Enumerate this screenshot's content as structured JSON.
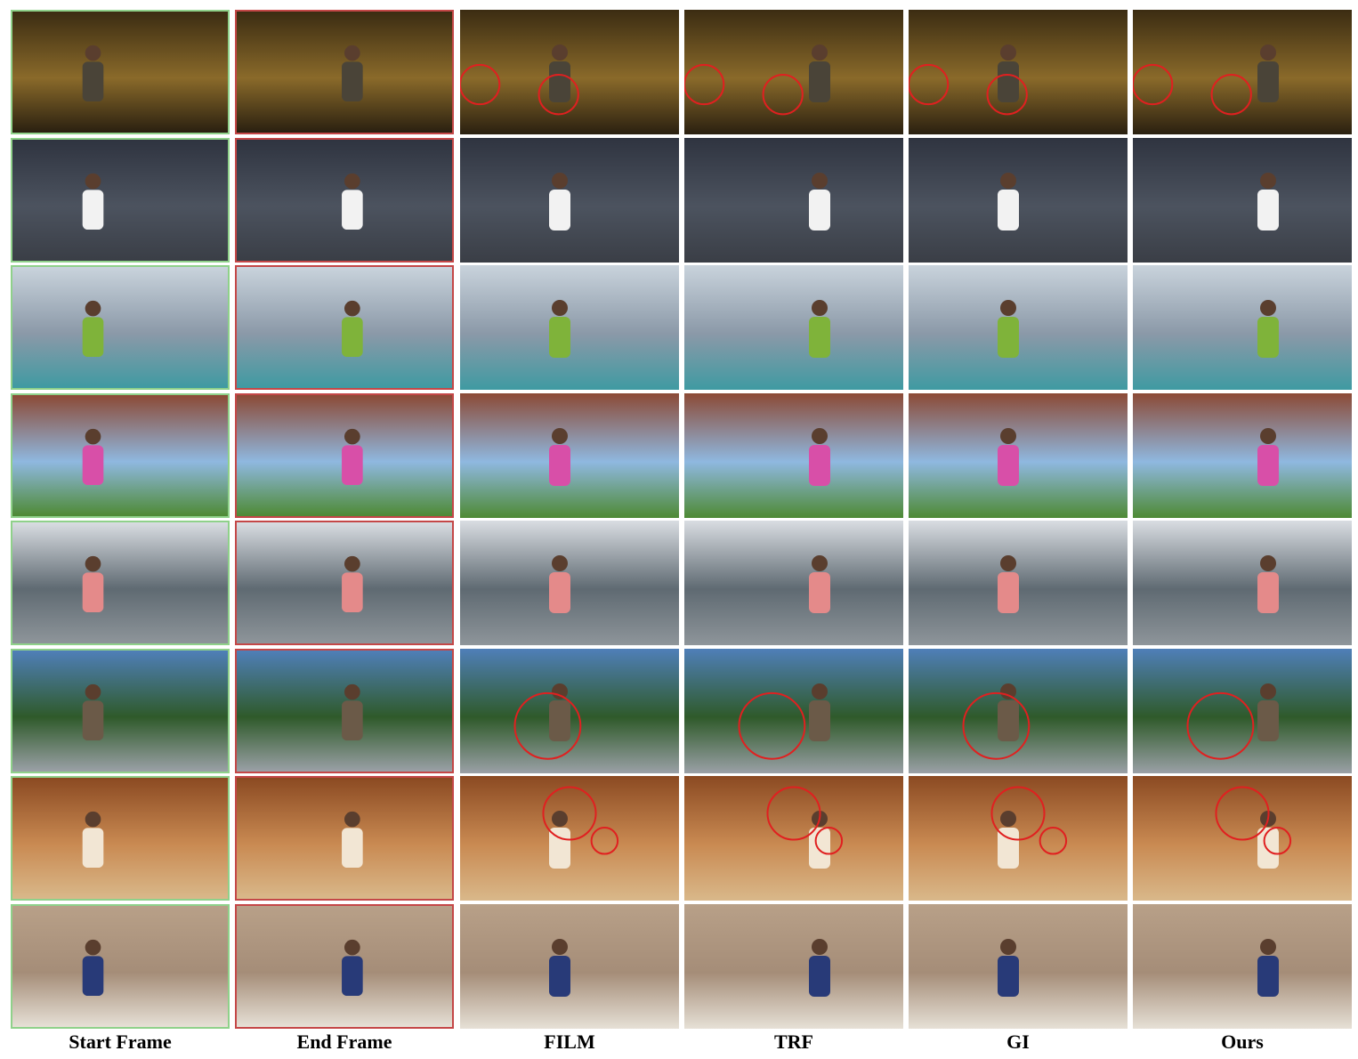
{
  "figure": {
    "columns": [
      {
        "label": "Start Frame"
      },
      {
        "label": "End Frame"
      },
      {
        "label": "FILM"
      },
      {
        "label": "TRF"
      },
      {
        "label": "GI"
      },
      {
        "label": "Ours"
      }
    ],
    "rows": [
      {
        "scene": "violin-player-indoor",
        "sky": "#3b2c12",
        "mid": "#8a6a2a",
        "ground": "#2a2010",
        "subject": "#4a4438",
        "circles": [
          [],
          [],
          [
            [
              0.09,
              0.6,
              0.09
            ],
            [
              0.45,
              0.68,
              0.09
            ]
          ],
          [
            [
              0.09,
              0.6,
              0.09
            ],
            [
              0.45,
              0.68,
              0.09
            ]
          ],
          [
            [
              0.09,
              0.6,
              0.09
            ],
            [
              0.45,
              0.68,
              0.09
            ]
          ],
          [
            [
              0.09,
              0.6,
              0.09
            ],
            [
              0.45,
              0.68,
              0.09
            ]
          ]
        ]
      },
      {
        "scene": "man-with-camera-gate",
        "sky": "#2f3440",
        "mid": "#4c535f",
        "ground": "#3a3e46",
        "subject": "#f2f2f2",
        "circles": [
          [],
          [],
          [],
          [],
          [],
          []
        ]
      },
      {
        "scene": "windsurfer-sea",
        "sky": "#c9d3dc",
        "mid": "#8b99a8",
        "ground": "#3f9aa2",
        "subject": "#7fb33a",
        "circles": [
          [],
          [],
          [],
          [],
          [],
          []
        ]
      },
      {
        "scene": "skater-graffiti-wall",
        "sky": "#8c4a36",
        "mid": "#8fb8e0",
        "ground": "#4e8a34",
        "subject": "#d84fa8",
        "circles": [
          [],
          [],
          [],
          [],
          [],
          []
        ]
      },
      {
        "scene": "woman-lakeside-bridge",
        "sky": "#d9dde2",
        "mid": "#5f6a72",
        "ground": "#8e959a",
        "subject": "#e48a8a",
        "circles": [
          [],
          [],
          [],
          [],
          [],
          []
        ]
      },
      {
        "scene": "picnic-table-forest",
        "sky": "#4f7fb8",
        "mid": "#2f5a2a",
        "ground": "#9aa0a6",
        "subject": "#6b5a48",
        "circles": [
          [],
          [],
          [
            [
              0.4,
              0.62,
              0.15
            ]
          ],
          [
            [
              0.4,
              0.62,
              0.15
            ]
          ],
          [
            [
              0.4,
              0.62,
              0.15
            ]
          ],
          [
            [
              0.4,
              0.62,
              0.15
            ]
          ]
        ]
      },
      {
        "scene": "woman-beach-hat",
        "sky": "#8b4a22",
        "mid": "#c98a52",
        "ground": "#d9b88a",
        "subject": "#f2e6d4",
        "circles": [
          [],
          [],
          [
            [
              0.5,
              0.3,
              0.12
            ],
            [
              0.66,
              0.52,
              0.06
            ]
          ],
          [
            [
              0.5,
              0.3,
              0.12
            ],
            [
              0.66,
              0.52,
              0.06
            ]
          ],
          [
            [
              0.5,
              0.3,
              0.12
            ],
            [
              0.66,
              0.52,
              0.06
            ]
          ],
          [
            [
              0.5,
              0.3,
              0.12
            ],
            [
              0.66,
              0.52,
              0.06
            ]
          ]
        ]
      },
      {
        "scene": "dancer-living-room",
        "sky": "#b8a088",
        "mid": "#a58d78",
        "ground": "#e6e0d6",
        "subject": "#283a78",
        "circles": [
          [],
          [],
          [],
          [],
          [],
          []
        ]
      }
    ]
  },
  "palette": {
    "circle": "#e02020",
    "start_border": "#8fd18a",
    "end_border": "#c44747"
  }
}
